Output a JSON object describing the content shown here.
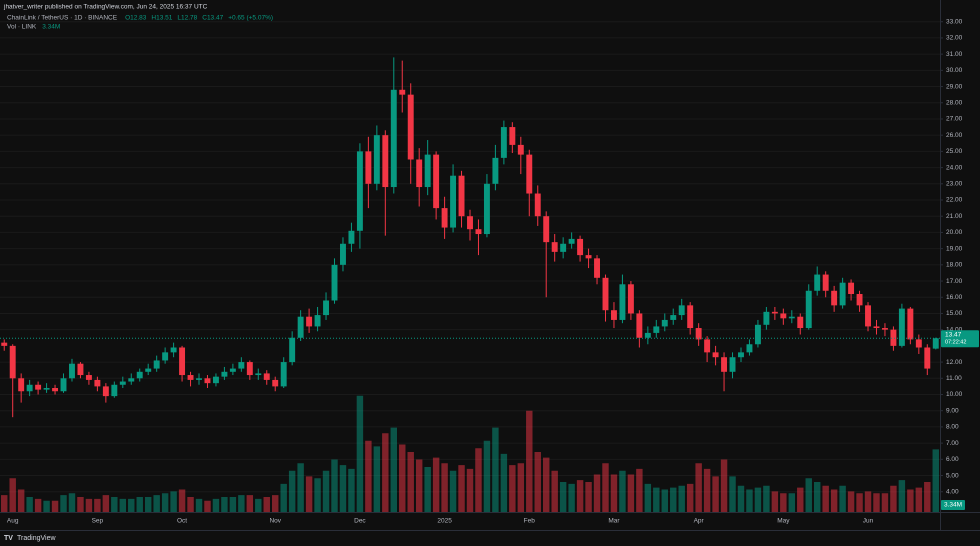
{
  "chart_data": {
    "type": "candlestick",
    "published": "jhatver_writer published on TradingView.com, Jun 24, 2025 16:37 UTC",
    "symbol": "ChainLink / TetherUS · 1D · BINANCE",
    "legend_ohlc": [
      "O12.83",
      "H13.51",
      "L12.78",
      "C13.47"
    ],
    "legend_change": "+0.65 (+5.07%)",
    "volume_title": "Vol · LINK",
    "volume_legend": "3.34M",
    "countdown": "07:22:42",
    "brand": "TradingView",
    "up_color": "#089981",
    "down_color": "#f23645",
    "grid": true,
    "categories": [
      null,
      "Aug",
      null,
      null,
      null,
      null,
      null,
      null,
      null,
      null,
      null,
      "Sep",
      null,
      null,
      null,
      null,
      null,
      null,
      null,
      null,
      null,
      "Oct",
      null,
      null,
      null,
      null,
      null,
      null,
      null,
      null,
      null,
      null,
      "Nov",
      null,
      null,
      null,
      null,
      null,
      null,
      null,
      null,
      null,
      "Dec",
      null,
      null,
      null,
      null,
      null,
      null,
      null,
      null,
      null,
      "2025",
      null,
      null,
      null,
      null,
      null,
      null,
      null,
      null,
      null,
      "Feb",
      null,
      null,
      null,
      null,
      null,
      null,
      null,
      null,
      null,
      "Mar",
      null,
      null,
      null,
      null,
      null,
      null,
      null,
      null,
      null,
      "Apr",
      null,
      null,
      null,
      null,
      null,
      null,
      null,
      null,
      null,
      "May",
      null,
      null,
      null,
      null,
      null,
      null,
      null,
      null,
      null,
      "Jun",
      null,
      null,
      null,
      null,
      null,
      null,
      null,
      null
    ],
    "open": [
      13.2,
      13.0,
      11.0,
      10.2,
      10.6,
      10.3,
      10.4,
      10.2,
      11.0,
      11.9,
      11.2,
      10.9,
      10.5,
      9.9,
      10.6,
      10.8,
      11.0,
      11.4,
      11.6,
      12.1,
      12.6,
      12.9,
      11.2,
      10.9,
      11.0,
      10.7,
      11.1,
      11.4,
      11.6,
      12.0,
      11.2,
      11.3,
      10.9,
      10.5,
      12.0,
      13.5,
      14.8,
      14.2,
      14.9,
      15.8,
      18.0,
      19.3,
      20.1,
      25.0,
      23.0,
      26.0,
      22.8,
      28.8,
      28.5,
      24.5,
      22.8,
      24.8,
      21.5,
      20.3,
      23.5,
      21.0,
      20.2,
      19.9,
      23.0,
      24.6,
      26.5,
      25.4,
      24.8,
      22.4,
      21.0,
      19.4,
      18.8,
      19.3,
      19.6,
      18.6,
      18.4,
      17.2,
      15.2,
      14.6,
      16.8,
      15.0,
      13.5,
      13.8,
      14.2,
      14.6,
      14.9,
      15.5,
      14.1,
      13.4,
      12.6,
      12.3,
      11.4,
      12.3,
      12.6,
      13.1,
      14.3,
      15.1,
      15.0,
      14.7,
      14.8,
      14.1,
      16.4,
      17.4,
      16.4,
      15.5,
      16.9,
      16.2,
      15.5,
      14.2,
      14.1,
      14.0,
      13.0,
      15.3,
      13.4,
      12.9,
      12.83
    ],
    "high": [
      13.4,
      13.1,
      11.3,
      10.9,
      10.8,
      10.7,
      10.6,
      11.3,
      12.2,
      12.0,
      11.4,
      11.1,
      10.7,
      10.8,
      11.1,
      11.3,
      11.6,
      11.9,
      12.4,
      12.9,
      13.2,
      13.0,
      11.4,
      11.3,
      11.2,
      11.3,
      11.7,
      11.9,
      12.3,
      12.1,
      11.6,
      11.5,
      11.1,
      12.3,
      13.9,
      15.2,
      15.3,
      15.4,
      16.3,
      18.4,
      19.7,
      20.6,
      25.5,
      25.9,
      26.6,
      26.3,
      30.8,
      30.6,
      29.2,
      25.2,
      25.7,
      25.0,
      22.2,
      24.2,
      23.8,
      21.4,
      20.8,
      23.6,
      25.4,
      26.9,
      26.8,
      25.9,
      25.1,
      22.9,
      21.3,
      19.9,
      19.7,
      20.0,
      19.8,
      19.0,
      18.6,
      17.4,
      15.7,
      17.4,
      17.0,
      15.2,
      14.2,
      14.6,
      15.0,
      15.3,
      15.9,
      15.7,
      14.4,
      13.6,
      13.0,
      12.6,
      12.6,
      12.9,
      13.4,
      14.6,
      15.4,
      15.4,
      15.3,
      15.2,
      15.0,
      16.8,
      17.9,
      17.6,
      16.7,
      17.2,
      17.1,
      16.4,
      15.7,
      14.6,
      14.4,
      14.2,
      15.6,
      15.4,
      13.7,
      13.1,
      13.51
    ],
    "low": [
      12.7,
      8.6,
      9.5,
      9.9,
      10.0,
      10.1,
      10.0,
      10.1,
      10.8,
      11.0,
      10.6,
      10.2,
      9.5,
      9.8,
      10.4,
      10.6,
      10.8,
      11.2,
      11.4,
      11.9,
      12.3,
      10.8,
      10.5,
      10.6,
      10.4,
      10.5,
      10.9,
      11.2,
      11.4,
      10.9,
      10.9,
      10.6,
      10.2,
      10.4,
      11.8,
      13.3,
      13.8,
      13.9,
      14.6,
      15.6,
      17.6,
      18.8,
      19.0,
      21.5,
      22.6,
      19.8,
      22.4,
      27.4,
      23.0,
      21.6,
      22.3,
      20.8,
      19.6,
      20.0,
      20.3,
      19.5,
      18.6,
      19.7,
      22.6,
      24.2,
      24.9,
      23.6,
      21.0,
      20.4,
      16.0,
      18.2,
      18.4,
      19.0,
      18.2,
      17.8,
      16.8,
      14.5,
      14.1,
      14.4,
      14.6,
      12.9,
      13.1,
      13.5,
      13.9,
      14.3,
      14.6,
      13.7,
      13.0,
      12.0,
      11.8,
      10.2,
      11.0,
      12.0,
      12.4,
      12.9,
      14.0,
      14.6,
      14.3,
      14.4,
      13.7,
      14.0,
      16.1,
      16.0,
      15.1,
      15.3,
      15.8,
      15.1,
      13.9,
      13.7,
      13.6,
      12.7,
      12.9,
      13.1,
      12.5,
      11.2,
      12.78
    ],
    "close": [
      13.0,
      11.0,
      10.2,
      10.6,
      10.3,
      10.4,
      10.2,
      11.0,
      11.9,
      11.2,
      10.9,
      10.5,
      9.9,
      10.6,
      10.8,
      11.0,
      11.4,
      11.6,
      12.1,
      12.6,
      12.9,
      11.2,
      10.9,
      11.0,
      10.7,
      11.1,
      11.4,
      11.6,
      12.0,
      11.2,
      11.3,
      10.9,
      10.5,
      12.0,
      13.5,
      14.8,
      14.2,
      14.9,
      15.8,
      18.0,
      19.3,
      20.1,
      25.0,
      23.0,
      26.0,
      22.8,
      28.8,
      28.5,
      24.5,
      22.8,
      24.8,
      21.5,
      20.3,
      23.5,
      21.0,
      20.2,
      19.9,
      23.0,
      24.6,
      26.5,
      25.4,
      24.8,
      22.4,
      21.0,
      19.4,
      18.8,
      19.3,
      19.6,
      18.6,
      18.4,
      17.2,
      15.2,
      14.6,
      16.8,
      15.0,
      13.5,
      13.8,
      14.2,
      14.6,
      14.9,
      15.5,
      14.1,
      13.4,
      12.6,
      12.3,
      11.4,
      12.3,
      12.6,
      13.1,
      14.3,
      15.1,
      15.0,
      14.7,
      14.8,
      14.1,
      16.4,
      17.4,
      16.4,
      15.5,
      16.9,
      16.2,
      15.5,
      14.2,
      14.1,
      14.0,
      13.0,
      15.3,
      13.4,
      12.9,
      11.6,
      13.47
    ],
    "volume": [
      0.9,
      1.8,
      1.2,
      0.8,
      0.7,
      0.6,
      0.6,
      0.9,
      1.0,
      0.8,
      0.7,
      0.7,
      0.9,
      0.8,
      0.7,
      0.7,
      0.8,
      0.8,
      0.9,
      1.0,
      1.1,
      1.2,
      0.8,
      0.7,
      0.6,
      0.7,
      0.8,
      0.8,
      0.9,
      0.9,
      0.7,
      0.8,
      0.9,
      1.5,
      2.2,
      2.6,
      1.9,
      1.8,
      2.2,
      2.8,
      2.5,
      2.3,
      6.2,
      3.8,
      3.5,
      4.2,
      4.5,
      3.6,
      3.2,
      2.8,
      2.4,
      2.9,
      2.6,
      2.2,
      2.5,
      2.3,
      3.4,
      3.8,
      4.5,
      3.1,
      2.5,
      2.6,
      5.4,
      3.2,
      2.9,
      2.2,
      1.6,
      1.5,
      1.7,
      1.6,
      2.0,
      2.6,
      2.0,
      2.2,
      2.0,
      2.3,
      1.5,
      1.3,
      1.2,
      1.3,
      1.4,
      1.5,
      2.6,
      2.3,
      1.9,
      2.8,
      1.9,
      1.4,
      1.2,
      1.3,
      1.4,
      1.1,
      1.0,
      1.0,
      1.3,
      1.8,
      1.6,
      1.4,
      1.2,
      1.4,
      1.1,
      1.0,
      1.1,
      1.0,
      1.0,
      1.4,
      1.7,
      1.2,
      1.3,
      1.6,
      3.34
    ],
    "ylim": [
      2.75,
      33.6
    ],
    "y2lim": [
      0,
      8
    ],
    "yticks": [
      {
        "value": 4,
        "label": "4.00"
      },
      {
        "value": 5,
        "label": "5.00"
      },
      {
        "value": 6,
        "label": "6.00"
      },
      {
        "value": 7,
        "label": "7.00"
      },
      {
        "value": 8,
        "label": "8.00"
      },
      {
        "value": 9,
        "label": "9.00"
      },
      {
        "value": 10,
        "label": "10.00"
      },
      {
        "value": 11,
        "label": "11.00"
      },
      {
        "value": 12,
        "label": "12.00"
      },
      {
        "value": 14,
        "label": "14.00"
      },
      {
        "value": 15,
        "label": "15.00"
      },
      {
        "value": 16,
        "label": "16.00"
      },
      {
        "value": 17,
        "label": "17.00"
      },
      {
        "value": 18,
        "label": "18.00"
      },
      {
        "value": 19,
        "label": "19.00"
      },
      {
        "value": 20,
        "label": "20.00"
      },
      {
        "value": 21,
        "label": "21.00"
      },
      {
        "value": 22,
        "label": "22.00"
      },
      {
        "value": 23,
        "label": "23.00"
      },
      {
        "value": 24,
        "label": "24.00"
      },
      {
        "value": 25,
        "label": "25.00"
      },
      {
        "value": 26,
        "label": "26.00"
      },
      {
        "value": 27,
        "label": "27.00"
      },
      {
        "value": 28,
        "label": "28.00"
      },
      {
        "value": 29,
        "label": "29.00"
      },
      {
        "value": 30,
        "label": "30.00"
      },
      {
        "value": 31,
        "label": "31.00"
      },
      {
        "value": 32,
        "label": "32.00"
      },
      {
        "value": 33,
        "label": "33.00"
      }
    ]
  }
}
